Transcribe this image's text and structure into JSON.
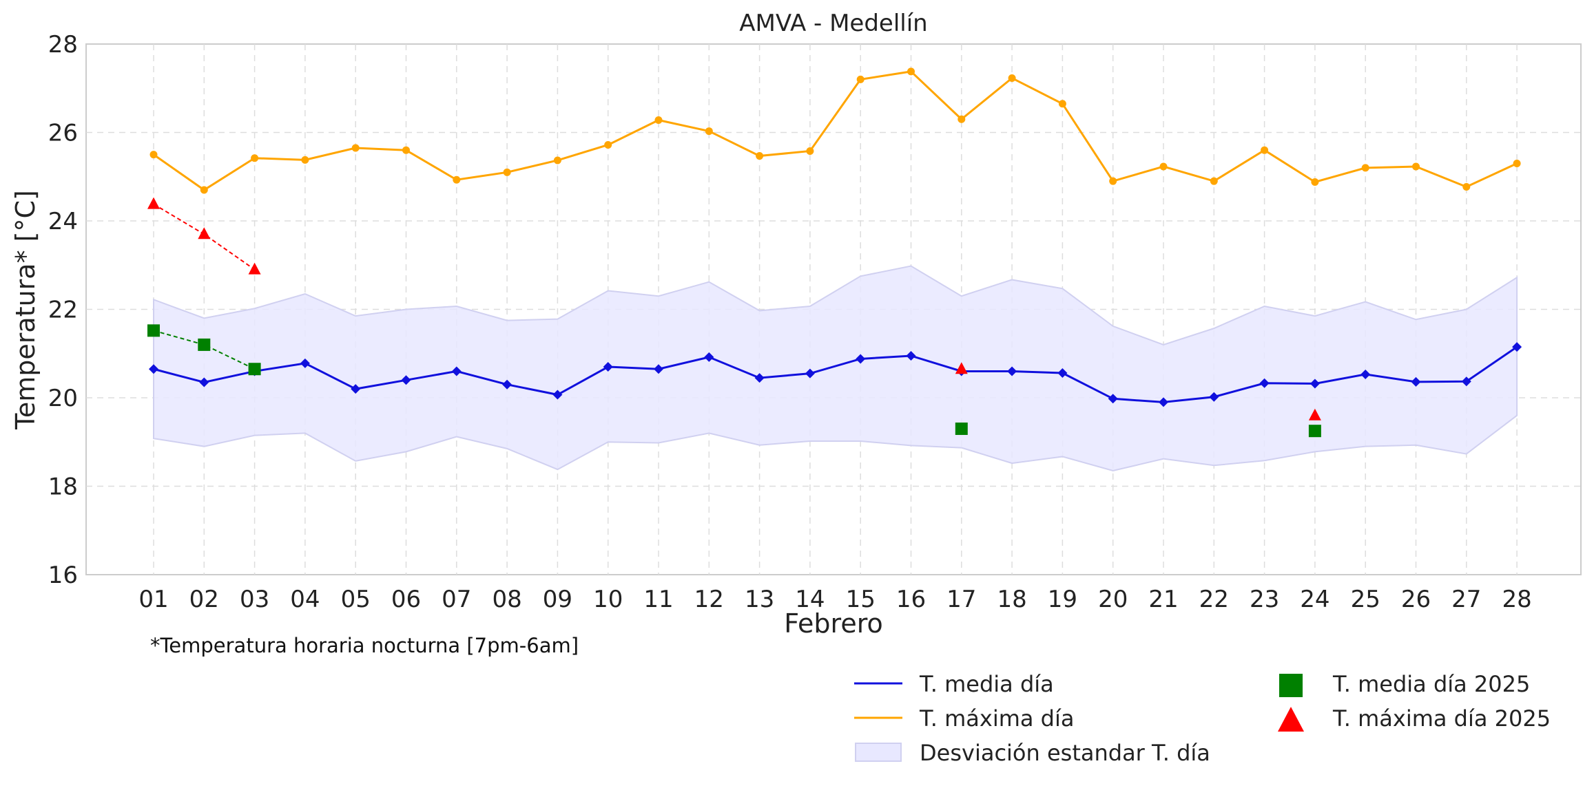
{
  "chart_data": {
    "type": "line",
    "title": "AMVA - Medellín",
    "xlabel": "Febrero",
    "ylabel": "Temperatura* [°C]",
    "note": "*Temperatura horaria nocturna [7pm-6am]",
    "ylim": [
      16,
      28
    ],
    "yticks": [
      "16",
      "18",
      "20",
      "22",
      "24",
      "26",
      "28"
    ],
    "grid": true,
    "legend_position": "bottom-right",
    "categories": [
      "01",
      "02",
      "03",
      "04",
      "05",
      "06",
      "07",
      "08",
      "09",
      "10",
      "11",
      "12",
      "13",
      "14",
      "15",
      "16",
      "17",
      "18",
      "19",
      "20",
      "21",
      "22",
      "23",
      "24",
      "25",
      "26",
      "27",
      "28"
    ],
    "series": [
      {
        "name": "T. media día",
        "kind": "line",
        "color": "#1010dd",
        "marker": "diamond",
        "values": [
          20.65,
          20.35,
          20.6,
          20.78,
          20.2,
          20.4,
          20.6,
          20.3,
          20.07,
          20.7,
          20.65,
          20.92,
          20.45,
          20.55,
          20.88,
          20.95,
          20.6,
          20.6,
          20.56,
          19.98,
          19.9,
          20.02,
          20.33,
          20.32,
          20.53,
          20.36,
          20.37,
          21.15
        ]
      },
      {
        "name": "T. máxima día",
        "kind": "line",
        "color": "#ffa500",
        "marker": "circle",
        "values": [
          25.5,
          24.7,
          25.42,
          25.38,
          25.65,
          25.6,
          24.93,
          25.1,
          25.37,
          25.72,
          26.28,
          26.03,
          25.47,
          25.58,
          27.2,
          27.38,
          26.3,
          27.23,
          26.65,
          24.9,
          25.23,
          24.9,
          25.6,
          24.88,
          25.2,
          25.23,
          24.77,
          25.3
        ]
      },
      {
        "name": "Desviación estandar T. día",
        "kind": "band",
        "color": "#e8e8ff",
        "edge_color": "#d0d0f0",
        "upper": [
          22.22,
          21.8,
          22.02,
          22.35,
          21.85,
          22.0,
          22.07,
          21.75,
          21.78,
          22.42,
          22.3,
          22.62,
          21.97,
          22.07,
          22.75,
          22.98,
          22.3,
          22.67,
          22.47,
          21.62,
          21.2,
          21.57,
          22.07,
          21.85,
          22.17,
          21.77,
          22.0,
          22.72
        ],
        "lower": [
          19.08,
          18.9,
          19.15,
          19.2,
          18.57,
          18.78,
          19.12,
          18.85,
          18.38,
          19.0,
          18.98,
          19.2,
          18.93,
          19.02,
          19.02,
          18.92,
          18.87,
          18.52,
          18.67,
          18.35,
          18.62,
          18.47,
          18.58,
          18.78,
          18.9,
          18.93,
          18.73,
          19.6
        ]
      },
      {
        "name": "T. media día 2025",
        "kind": "markers",
        "color": "#008000",
        "marker": "square",
        "points": [
          {
            "x": "01",
            "y": 21.52
          },
          {
            "x": "02",
            "y": 21.2
          },
          {
            "x": "03",
            "y": 20.65
          },
          {
            "x": "17",
            "y": 19.3
          },
          {
            "x": "24",
            "y": 19.25
          }
        ],
        "dashed_days": [
          "01",
          "02",
          "03"
        ]
      },
      {
        "name": "T. máxima día 2025",
        "kind": "markers",
        "color": "#ff0000",
        "marker": "triangle",
        "points": [
          {
            "x": "01",
            "y": 24.38
          },
          {
            "x": "02",
            "y": 23.7
          },
          {
            "x": "03",
            "y": 22.9
          },
          {
            "x": "17",
            "y": 20.65
          },
          {
            "x": "24",
            "y": 19.6
          }
        ],
        "dashed_days": [
          "01",
          "02",
          "03"
        ]
      }
    ]
  }
}
